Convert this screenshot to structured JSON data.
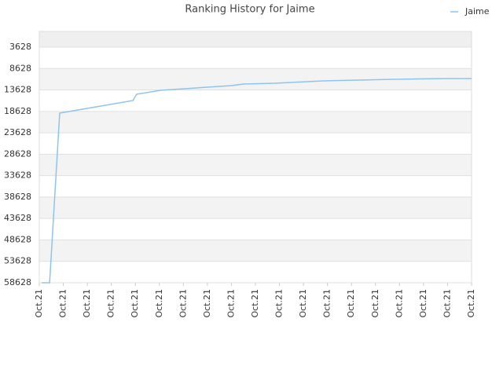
{
  "chart_data": {
    "type": "line",
    "title": "Ranking History for Jaime",
    "x": [
      0.1,
      0.43,
      0.85,
      3.9,
      4.05,
      5.05,
      7,
      8,
      8.5,
      9.8,
      11.8,
      14.7,
      16.9,
      18
    ],
    "series": [
      {
        "name": "Jaime",
        "color": "#8ec3ee",
        "values": [
          58628,
          58628,
          19028,
          16095,
          14628,
          13711,
          12978,
          12611,
          12245,
          12061,
          11511,
          11145,
          10961,
          10961
        ]
      }
    ],
    "xlim": [
      0,
      18
    ],
    "xticks": [
      {
        "value": 0,
        "label": "Oct.21"
      },
      {
        "value": 1,
        "label": "Oct.21"
      },
      {
        "value": 2,
        "label": "Oct.21"
      },
      {
        "value": 3,
        "label": "Oct.21"
      },
      {
        "value": 4,
        "label": "Oct.21"
      },
      {
        "value": 5,
        "label": "Oct.21"
      },
      {
        "value": 6,
        "label": "Oct.21"
      },
      {
        "value": 7,
        "label": "Oct.21"
      },
      {
        "value": 8,
        "label": "Oct.21"
      },
      {
        "value": 9,
        "label": "Oct.21"
      },
      {
        "value": 10,
        "label": "Oct.21"
      },
      {
        "value": 11,
        "label": "Oct.21"
      },
      {
        "value": 12,
        "label": "Oct.21"
      },
      {
        "value": 13,
        "label": "Oct.21"
      },
      {
        "value": 14,
        "label": "Oct.21"
      },
      {
        "value": 15,
        "label": "Oct.21"
      },
      {
        "value": 16,
        "label": "Oct.21"
      },
      {
        "value": 17,
        "label": "Oct.21"
      },
      {
        "value": 18,
        "label": "Oct.21"
      }
    ],
    "ylim": [
      58628,
      -39
    ],
    "yticks": [
      3628,
      8628,
      13628,
      18628,
      23628,
      28628,
      33628,
      38628,
      43628,
      48628,
      53628,
      58628
    ],
    "grid": true,
    "legend": "top-right"
  }
}
